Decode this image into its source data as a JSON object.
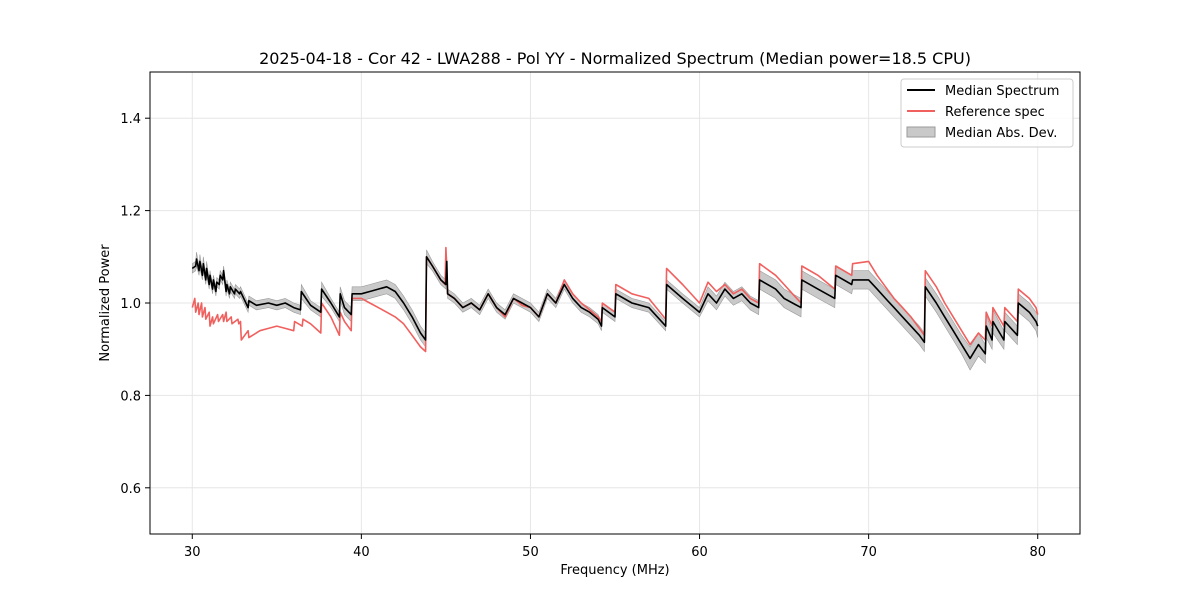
{
  "chart_data": {
    "type": "line",
    "title": "2025-04-18 - Cor 42 - LWA288 - Pol YY - Normalized Spectrum (Median power=18.5 CPU)",
    "xlabel": "Frequency (MHz)",
    "ylabel": "Normalized Power",
    "xlim": [
      27.5,
      82.5
    ],
    "ylim": [
      0.5,
      1.5
    ],
    "xticks": [
      30,
      40,
      50,
      60,
      70,
      80
    ],
    "yticks": [
      0.6,
      0.8,
      1.0,
      1.2,
      1.4
    ],
    "grid": true,
    "legend_position": "top-right",
    "colors": {
      "median": "#000000",
      "reference": "#f0605e",
      "mad_fill": "#c9c9c9",
      "mad_edge": "#9a9a9a",
      "grid": "#e6e6e6"
    },
    "series": [
      {
        "name": "Median Spectrum",
        "x": [
          30.0,
          30.2,
          30.25,
          30.4,
          30.45,
          30.6,
          30.65,
          30.8,
          30.85,
          31.0,
          31.05,
          31.2,
          31.25,
          31.4,
          31.45,
          31.6,
          31.65,
          31.8,
          31.85,
          32.0,
          32.05,
          32.2,
          32.25,
          32.5,
          32.55,
          32.8,
          32.85,
          33.3,
          33.35,
          33.8,
          34.5,
          35.0,
          35.5,
          36.0,
          36.4,
          36.45,
          37.0,
          37.6,
          37.65,
          38.2,
          38.7,
          38.75,
          39.0,
          39.4,
          39.45,
          40.0,
          40.5,
          41.0,
          41.5,
          42.0,
          42.5,
          43.0,
          43.5,
          43.8,
          43.85,
          44.2,
          44.7,
          45.0,
          45.05,
          45.1,
          45.5,
          46.0,
          46.5,
          47.0,
          47.5,
          48.0,
          48.5,
          49.0,
          49.5,
          50.0,
          50.5,
          51.0,
          51.5,
          52.0,
          52.5,
          53.0,
          53.5,
          54.0,
          54.2,
          54.25,
          55.0,
          55.05,
          56.0,
          57.0,
          58.0,
          58.05,
          59.0,
          60.0,
          60.5,
          61.0,
          61.5,
          62.0,
          62.5,
          63.0,
          63.5,
          63.55,
          64.5,
          65.0,
          65.5,
          66.0,
          66.05,
          67.0,
          68.0,
          68.05,
          69.0,
          69.05,
          70.0,
          70.5,
          71.0,
          71.5,
          72.0,
          72.5,
          73.0,
          73.3,
          73.35,
          74.0,
          74.5,
          75.0,
          75.5,
          76.0,
          76.5,
          76.9,
          76.95,
          77.3,
          77.35,
          78.0,
          78.05,
          78.8,
          78.85,
          79.5,
          79.9,
          80.0
        ],
        "values": [
          1.075,
          1.08,
          1.095,
          1.07,
          1.09,
          1.06,
          1.085,
          1.05,
          1.075,
          1.04,
          1.06,
          1.03,
          1.05,
          1.025,
          1.045,
          1.04,
          1.06,
          1.05,
          1.07,
          1.025,
          1.04,
          1.02,
          1.035,
          1.02,
          1.03,
          1.02,
          1.025,
          0.99,
          1.005,
          0.995,
          1.0,
          0.995,
          1.0,
          0.99,
          0.985,
          1.025,
          0.995,
          0.98,
          1.03,
          1.0,
          0.97,
          1.02,
          0.99,
          0.975,
          1.02,
          1.02,
          1.025,
          1.03,
          1.035,
          1.025,
          1.0,
          0.97,
          0.935,
          0.92,
          1.1,
          1.08,
          1.05,
          1.04,
          1.09,
          1.02,
          1.01,
          0.99,
          1.0,
          0.985,
          1.02,
          0.99,
          0.975,
          1.01,
          1.0,
          0.99,
          0.97,
          1.02,
          1.0,
          1.04,
          1.01,
          0.99,
          0.98,
          0.965,
          0.95,
          0.99,
          0.97,
          1.02,
          1.0,
          0.99,
          0.95,
          1.04,
          1.01,
          0.98,
          1.02,
          1.0,
          1.03,
          1.01,
          1.02,
          1.0,
          0.99,
          1.05,
          1.03,
          1.01,
          1.0,
          0.99,
          1.05,
          1.03,
          1.01,
          1.06,
          1.04,
          1.05,
          1.05,
          1.03,
          1.01,
          0.99,
          0.97,
          0.95,
          0.93,
          0.915,
          1.035,
          1.0,
          0.97,
          0.94,
          0.91,
          0.88,
          0.91,
          0.89,
          0.95,
          0.92,
          0.96,
          0.92,
          0.96,
          0.93,
          1.0,
          0.98,
          0.96,
          0.95
        ],
        "mad_lower": [
          1.065,
          1.07,
          1.08,
          1.06,
          1.075,
          1.05,
          1.07,
          1.04,
          1.06,
          1.03,
          1.05,
          1.02,
          1.04,
          1.015,
          1.035,
          1.03,
          1.05,
          1.04,
          1.06,
          1.015,
          1.03,
          1.01,
          1.025,
          1.01,
          1.02,
          1.01,
          1.015,
          0.98,
          0.995,
          0.985,
          0.99,
          0.985,
          0.99,
          0.98,
          0.975,
          1.01,
          0.985,
          0.97,
          1.015,
          0.99,
          0.96,
          1.005,
          0.975,
          0.96,
          1.005,
          1.005,
          1.01,
          1.015,
          1.02,
          1.01,
          0.985,
          0.955,
          0.92,
          0.905,
          1.085,
          1.07,
          1.04,
          1.03,
          1.08,
          1.01,
          1.0,
          0.98,
          0.99,
          0.975,
          1.01,
          0.98,
          0.965,
          1.0,
          0.99,
          0.98,
          0.96,
          1.01,
          0.99,
          1.03,
          1.0,
          0.98,
          0.97,
          0.955,
          0.94,
          0.98,
          0.96,
          1.01,
          0.99,
          0.98,
          0.94,
          1.03,
          1.0,
          0.97,
          1.005,
          0.985,
          1.015,
          0.995,
          1.005,
          0.985,
          0.975,
          1.03,
          1.01,
          0.99,
          0.98,
          0.97,
          1.03,
          1.01,
          0.99,
          1.04,
          1.02,
          1.03,
          1.03,
          1.01,
          0.99,
          0.97,
          0.95,
          0.93,
          0.91,
          0.895,
          1.015,
          0.98,
          0.95,
          0.92,
          0.89,
          0.855,
          0.885,
          0.87,
          0.925,
          0.9,
          0.935,
          0.9,
          0.94,
          0.91,
          0.98,
          0.96,
          0.94,
          0.925
        ],
        "mad_upper": [
          1.085,
          1.09,
          1.11,
          1.08,
          1.105,
          1.07,
          1.1,
          1.06,
          1.09,
          1.05,
          1.07,
          1.04,
          1.06,
          1.035,
          1.055,
          1.05,
          1.07,
          1.06,
          1.08,
          1.035,
          1.05,
          1.03,
          1.045,
          1.03,
          1.04,
          1.03,
          1.035,
          1.0,
          1.015,
          1.005,
          1.01,
          1.005,
          1.01,
          1.0,
          0.995,
          1.04,
          1.005,
          0.99,
          1.045,
          1.01,
          0.98,
          1.035,
          1.005,
          0.99,
          1.035,
          1.035,
          1.04,
          1.045,
          1.05,
          1.04,
          1.015,
          0.985,
          0.95,
          0.935,
          1.115,
          1.09,
          1.06,
          1.05,
          1.1,
          1.03,
          1.02,
          1.0,
          1.01,
          0.995,
          1.03,
          1.0,
          0.985,
          1.02,
          1.01,
          1.0,
          0.98,
          1.03,
          1.01,
          1.05,
          1.02,
          1.0,
          0.99,
          0.975,
          0.96,
          1.0,
          0.98,
          1.03,
          1.01,
          1.0,
          0.96,
          1.05,
          1.02,
          0.99,
          1.035,
          1.015,
          1.045,
          1.025,
          1.035,
          1.015,
          1.005,
          1.07,
          1.05,
          1.03,
          1.02,
          1.01,
          1.07,
          1.05,
          1.03,
          1.08,
          1.06,
          1.07,
          1.07,
          1.05,
          1.03,
          1.01,
          0.99,
          0.97,
          0.95,
          0.935,
          1.055,
          1.02,
          0.99,
          0.96,
          0.93,
          0.905,
          0.935,
          0.91,
          0.975,
          0.94,
          0.985,
          0.94,
          0.98,
          0.95,
          1.02,
          1.0,
          0.98,
          0.975
        ]
      },
      {
        "name": "Reference spec",
        "x": [
          30.0,
          30.15,
          30.2,
          30.35,
          30.4,
          30.55,
          30.6,
          30.75,
          30.8,
          31.0,
          31.05,
          31.2,
          31.25,
          31.5,
          31.55,
          31.8,
          31.85,
          32.0,
          32.05,
          32.3,
          32.35,
          32.7,
          32.75,
          32.85,
          32.9,
          33.3,
          33.35,
          34.0,
          34.5,
          35.0,
          35.5,
          36.0,
          36.05,
          36.5,
          36.55,
          37.0,
          37.6,
          37.65,
          38.2,
          38.7,
          38.75,
          39.0,
          39.4,
          39.45,
          40.0,
          40.5,
          41.0,
          41.5,
          42.0,
          42.5,
          43.0,
          43.5,
          43.8,
          43.85,
          44.2,
          44.7,
          44.95,
          45.0,
          45.05,
          45.1,
          45.5,
          46.0,
          46.5,
          47.0,
          47.5,
          48.0,
          48.5,
          49.0,
          49.5,
          50.0,
          50.5,
          51.0,
          51.5,
          52.0,
          52.5,
          53.0,
          53.5,
          54.0,
          54.2,
          54.25,
          55.0,
          55.05,
          56.0,
          57.0,
          58.0,
          58.05,
          59.0,
          60.0,
          60.5,
          61.0,
          61.5,
          62.0,
          62.5,
          63.0,
          63.5,
          63.55,
          64.5,
          65.0,
          65.5,
          66.0,
          66.05,
          67.0,
          68.0,
          68.05,
          69.0,
          69.05,
          70.0,
          70.5,
          71.0,
          71.5,
          72.0,
          72.5,
          73.0,
          73.3,
          73.35,
          74.0,
          74.5,
          75.0,
          75.5,
          76.0,
          76.5,
          76.9,
          76.95,
          77.3,
          77.35,
          78.0,
          78.05,
          78.8,
          78.85,
          79.5,
          79.9,
          80.0
        ],
        "values": [
          0.99,
          1.01,
          0.98,
          1.0,
          0.975,
          1.0,
          0.97,
          0.99,
          0.965,
          0.98,
          0.95,
          0.97,
          0.955,
          0.975,
          0.96,
          0.975,
          0.96,
          0.98,
          0.96,
          0.97,
          0.955,
          0.965,
          0.955,
          0.96,
          0.92,
          0.94,
          0.925,
          0.94,
          0.945,
          0.95,
          0.945,
          0.94,
          0.96,
          0.95,
          0.965,
          0.955,
          0.935,
          1.0,
          0.97,
          0.93,
          0.98,
          0.96,
          0.94,
          1.01,
          1.01,
          1.0,
          0.99,
          0.98,
          0.97,
          0.955,
          0.93,
          0.905,
          0.895,
          1.1,
          1.08,
          1.05,
          1.04,
          1.12,
          1.07,
          1.02,
          1.01,
          0.99,
          1.0,
          0.985,
          1.02,
          0.99,
          0.97,
          1.01,
          0.995,
          0.99,
          0.97,
          1.02,
          1.0,
          1.05,
          1.02,
          1.0,
          0.985,
          0.97,
          0.96,
          1.0,
          0.98,
          1.04,
          1.02,
          1.01,
          0.965,
          1.075,
          1.04,
          1.0,
          1.045,
          1.025,
          1.04,
          1.02,
          1.03,
          1.01,
          1.0,
          1.085,
          1.06,
          1.04,
          1.02,
          1.0,
          1.08,
          1.06,
          1.03,
          1.08,
          1.06,
          1.085,
          1.09,
          1.06,
          1.035,
          1.01,
          0.99,
          0.97,
          0.945,
          0.93,
          1.07,
          1.035,
          1.0,
          0.97,
          0.94,
          0.91,
          0.935,
          0.92,
          0.98,
          0.95,
          0.99,
          0.95,
          0.99,
          0.96,
          1.03,
          1.01,
          0.99,
          0.975
        ]
      }
    ]
  },
  "legend": {
    "items": [
      {
        "label": "Median Spectrum",
        "kind": "line",
        "color": "#000000"
      },
      {
        "label": "Reference spec",
        "kind": "line",
        "color": "#f0605e"
      },
      {
        "label": "Median Abs. Dev.",
        "kind": "patch",
        "color": "#c9c9c9"
      }
    ]
  }
}
